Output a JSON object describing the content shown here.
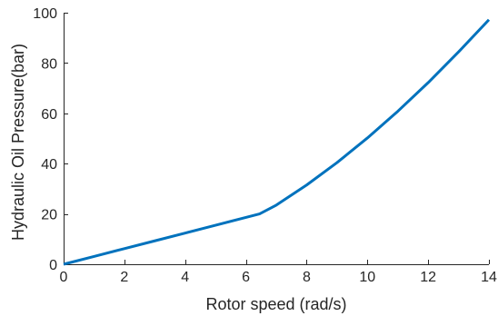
{
  "chart_data": {
    "type": "line",
    "title": "",
    "xlabel": "Rotor speed (rad/s)",
    "ylabel": "Hydraulic Oil Pressure(bar)",
    "xlim": [
      0,
      14
    ],
    "ylim": [
      0,
      100
    ],
    "x_ticks": [
      0,
      2,
      4,
      6,
      8,
      10,
      12,
      14
    ],
    "y_ticks": [
      0,
      20,
      40,
      60,
      80,
      100
    ],
    "grid": false,
    "legend": "none",
    "series": [
      {
        "color": "#0072BD",
        "x": [
          0,
          1,
          2,
          3,
          4,
          5,
          6,
          6.45,
          7,
          8,
          9,
          10,
          11,
          12,
          13,
          14
        ],
        "y": [
          0,
          3.1,
          6.2,
          9.3,
          12.4,
          15.5,
          18.6,
          20,
          23.5,
          31.5,
          40.4,
          50.2,
          60.8,
          72.2,
          84.4,
          97.2
        ]
      }
    ]
  }
}
